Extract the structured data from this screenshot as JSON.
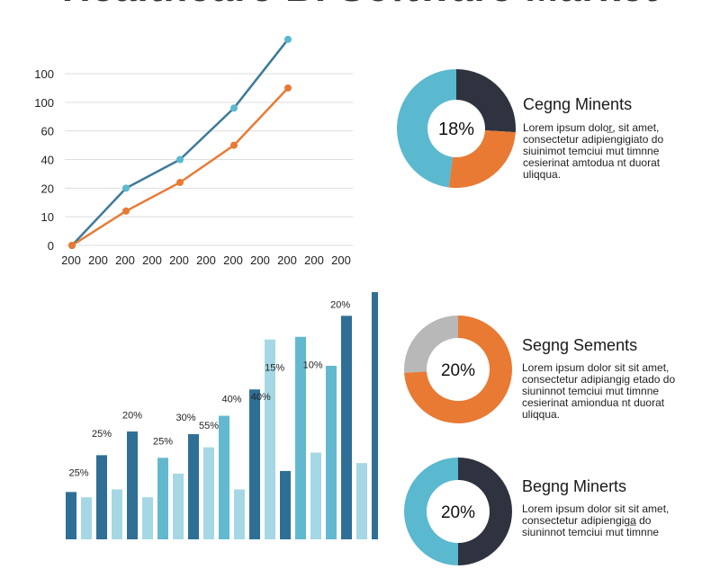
{
  "page": {
    "title": "Healthcare BI Software Market"
  },
  "colors": {
    "teal": "#3d7a9a",
    "orange": "#e87a34",
    "light_blue": "#5ab8cf",
    "dark": "#2f3340",
    "bar_dark": "#2f6f96",
    "bar_mid": "#62b9cf",
    "bar_light": "#a6d7e4",
    "gray": "#b8b8b8",
    "grid": "#dddddd"
  },
  "chart_data": [
    {
      "type": "line",
      "title": "",
      "x": [
        "200",
        "200",
        "200",
        "200",
        "200",
        "200",
        "200",
        "200",
        "200",
        "200",
        "200"
      ],
      "y_tick_labels": [
        "0",
        "10",
        "20",
        "40",
        "60",
        "100",
        "100"
      ],
      "grid": true,
      "series": [
        {
          "color": "#3d7a9a",
          "points": [
            [
              0,
              0
            ],
            [
              2,
              2
            ],
            [
              4,
              3
            ],
            [
              6,
              4.8
            ],
            [
              8,
              7.2
            ]
          ]
        },
        {
          "color": "#e87a34",
          "points": [
            [
              0,
              0
            ],
            [
              2,
              1.2
            ],
            [
              4,
              2.2
            ],
            [
              6,
              3.5
            ],
            [
              8,
              5.5
            ]
          ]
        }
      ],
      "point_marker_color_series0": "#5ab8cf"
    },
    {
      "type": "bar",
      "title": "",
      "groups": [
        {
          "bars": [
            {
              "v": 18,
              "c": "dark"
            },
            {
              "v": 16,
              "c": "light"
            },
            {
              "v": 32,
              "c": "dark"
            },
            {
              "v": 19,
              "c": "light"
            }
          ],
          "label": "25%"
        },
        {
          "bars": [
            {
              "v": 41,
              "c": "dark"
            },
            {
              "v": 16,
              "c": "light"
            },
            {
              "v": 31,
              "c": "mid"
            },
            {
              "v": 25,
              "c": "light"
            }
          ],
          "label": "20%"
        },
        {
          "bars": [
            {
              "v": 40,
              "c": "dark"
            },
            {
              "v": 35,
              "c": "light"
            },
            {
              "v": 47,
              "c": "mid"
            },
            {
              "v": 19,
              "c": "light"
            }
          ],
          "label": "30%"
        },
        {
          "bars": [
            {
              "v": 57,
              "c": "dark"
            },
            {
              "v": 76,
              "c": "mid"
            },
            {
              "v": 26,
              "c": "light"
            },
            {
              "v": 77,
              "c": "dark"
            }
          ],
          "label": "40%"
        },
        {
          "bars": [
            {
              "v": 33,
              "c": "light"
            },
            {
              "v": 66,
              "c": "mid"
            },
            {
              "v": 85,
              "c": "dark"
            }
          ],
          "label": "10%"
        }
      ],
      "data_labels": [
        {
          "text": "25%",
          "x": 0.5,
          "v": 22
        },
        {
          "text": "25%",
          "x": 2,
          "v": 37
        },
        {
          "text": "20%",
          "x": 4,
          "v": 44
        },
        {
          "text": "25%",
          "x": 6,
          "v": 34
        },
        {
          "text": "30%",
          "x": 7.5,
          "v": 43
        },
        {
          "text": "55%",
          "x": 9,
          "v": 40
        },
        {
          "text": "40%",
          "x": 10.5,
          "v": 50
        },
        {
          "text": "40%",
          "x": 12.4,
          "v": 51
        },
        {
          "text": "15%",
          "x": 13.3,
          "v": 62
        },
        {
          "text": "10%",
          "x": 15.8,
          "v": 63
        },
        {
          "text": "20%",
          "x": 17.6,
          "v": 86
        }
      ],
      "series_values_flat": [
        18,
        16,
        32,
        19,
        41,
        16,
        31,
        25,
        40,
        35,
        47,
        19,
        57,
        76,
        26,
        77,
        33,
        66,
        85,
        29,
        94
      ],
      "series_colors_flat": [
        "dark",
        "light",
        "dark",
        "light",
        "dark",
        "light",
        "mid",
        "light",
        "dark",
        "light",
        "mid",
        "light",
        "dark",
        "light",
        "dark",
        "mid",
        "light",
        "mid",
        "dark",
        "light",
        "dark"
      ]
    },
    {
      "type": "pie",
      "title": "Cegng Minents",
      "center_label": "18%",
      "slices": [
        {
          "value": 26,
          "color": "#2f3340"
        },
        {
          "value": 26,
          "color": "#e87a34"
        },
        {
          "value": 48,
          "color": "#5ab8cf"
        }
      ]
    },
    {
      "type": "pie",
      "title": "Segng Sements",
      "center_label": "20%",
      "slices": [
        {
          "value": 74,
          "color": "#e87a34"
        },
        {
          "value": 26,
          "color": "#b8b8b8"
        }
      ]
    },
    {
      "type": "pie",
      "title": "Begng Minerts",
      "center_label": "20%",
      "slices": [
        {
          "value": 50,
          "color": "#2f3340"
        },
        {
          "value": 50,
          "color": "#5ab8cf"
        }
      ]
    }
  ],
  "segments": [
    {
      "title": "Cegng Minents",
      "lines": [
        "Lorem ipsum dolor̲, sit amet,",
        "consectetur adipiengigiato do",
        "siuinimot temciui mut timnne",
        "cesierinat amtodua nt duorat",
        "uliqqua."
      ]
    },
    {
      "title": "Segng Sements",
      "lines": [
        "Lorem ipsum dolor sit sit amet,",
        "consectetur adipiangig etado do",
        "siuninnot temciui mut timnne",
        "cesierinat amiondua nt duorat",
        "uliqqua."
      ]
    },
    {
      "title": "Begng Minerts",
      "lines": [
        "Lorem ipsum dolor sit sit amet,",
        "consectetur adipiengiga̲ do",
        "siuninnot temciui mut timnne"
      ]
    }
  ]
}
